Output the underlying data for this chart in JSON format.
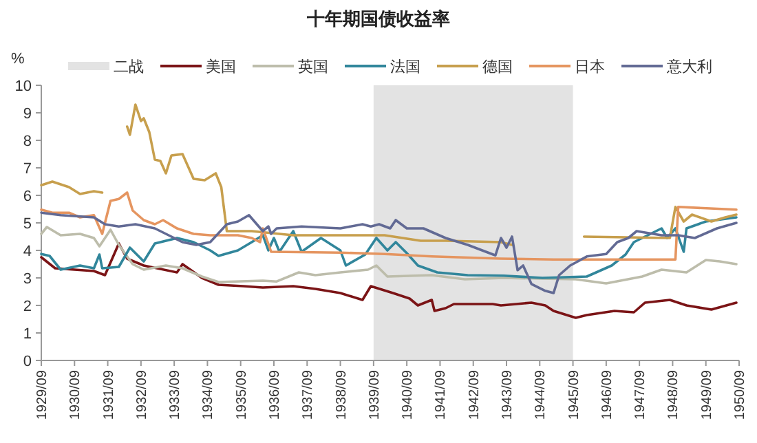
{
  "chart_data": {
    "type": "line",
    "title": "十年期国债收益率",
    "ylabel": "%",
    "xlim": [
      "1929-09",
      "1950-09"
    ],
    "ylim": [
      0,
      10
    ],
    "yticks": [
      0,
      1,
      2,
      3,
      4,
      5,
      6,
      7,
      8,
      9,
      10
    ],
    "xticks": [
      {
        "value": "1929-09",
        "label": "1929/09"
      },
      {
        "value": "1930-09",
        "label": "1930/09"
      },
      {
        "value": "1931-09",
        "label": "1931/09"
      },
      {
        "value": "1932-09",
        "label": "1932/09"
      },
      {
        "value": "1933-09",
        "label": "1933/09"
      },
      {
        "value": "1934-09",
        "label": "1934/09"
      },
      {
        "value": "1935-09",
        "label": "1935/09"
      },
      {
        "value": "1936-09",
        "label": "1936/09"
      },
      {
        "value": "1937-09",
        "label": "1937/09"
      },
      {
        "value": "1938-09",
        "label": "1938/09"
      },
      {
        "value": "1939-09",
        "label": "1939/09"
      },
      {
        "value": "1940-09",
        "label": "1940/09"
      },
      {
        "value": "1941-09",
        "label": "1941/09"
      },
      {
        "value": "1942-09",
        "label": "1942/09"
      },
      {
        "value": "1943-09",
        "label": "1943/09"
      },
      {
        "value": "1944-09",
        "label": "1944/09"
      },
      {
        "value": "1945-09",
        "label": "1945/09"
      },
      {
        "value": "1946-09",
        "label": "1946/09"
      },
      {
        "value": "1947-09",
        "label": "1947/09"
      },
      {
        "value": "1948-09",
        "label": "1948/09"
      },
      {
        "value": "1949-09",
        "label": "1949/09"
      },
      {
        "value": "1950-09",
        "label": "1950/09"
      }
    ],
    "bands": [
      {
        "axis": "x",
        "from": "1939-09",
        "to": "1945-09",
        "label": "二战",
        "color": "#e3e3e3"
      }
    ],
    "legend": "top",
    "grid": false,
    "marker": "none",
    "line_style": "solid",
    "series": [
      {
        "name": "美国",
        "color": "#7b1416",
        "x": [
          "1929-09",
          "1930-02",
          "1931-04",
          "1931-08",
          "1932-01",
          "1932-04",
          "1932-10",
          "1933-10",
          "1933-12",
          "1934-07",
          "1935-01",
          "1935-10",
          "1936-05",
          "1937-04",
          "1937-12",
          "1938-09",
          "1939-05",
          "1939-08",
          "1940-04",
          "1940-10",
          "1941-01",
          "1941-06",
          "1941-07",
          "1941-11",
          "1942-02",
          "1943-04",
          "1943-07",
          "1944-06",
          "1944-11",
          "1945-02",
          "1945-10",
          "1946-02",
          "1946-12",
          "1947-07",
          "1947-11",
          "1948-08",
          "1949-02",
          "1949-11",
          "1950-08"
        ],
        "values": [
          3.75,
          3.35,
          3.25,
          3.1,
          4.25,
          3.7,
          3.45,
          3.2,
          3.5,
          3.0,
          2.75,
          2.7,
          2.65,
          2.7,
          2.6,
          2.45,
          2.2,
          2.7,
          2.45,
          2.25,
          2.0,
          2.2,
          1.8,
          1.9,
          2.05,
          2.05,
          2.0,
          2.1,
          2.0,
          1.8,
          1.55,
          1.65,
          1.8,
          1.75,
          2.1,
          2.2,
          2.0,
          1.85,
          2.1
        ]
      },
      {
        "name": "英国",
        "color": "#bdbdab",
        "x": [
          "1929-09",
          "1929-11",
          "1930-04",
          "1930-11",
          "1931-04",
          "1931-06",
          "1931-10",
          "1932-01",
          "1932-06",
          "1932-10",
          "1933-06",
          "1933-12",
          "1934-07",
          "1935-01",
          "1936-05",
          "1936-10",
          "1937-06",
          "1937-12",
          "1938-09",
          "1939-07",
          "1939-10",
          "1940-02",
          "1941-06",
          "1942-06",
          "1943-08",
          "1945-10",
          "1946-09",
          "1947-10",
          "1948-05",
          "1949-02",
          "1949-09",
          "1950-02",
          "1950-08"
        ],
        "values": [
          4.6,
          4.85,
          4.55,
          4.6,
          4.45,
          4.15,
          4.75,
          4.2,
          3.5,
          3.3,
          3.45,
          3.35,
          3.05,
          2.85,
          2.9,
          2.87,
          3.2,
          3.1,
          3.2,
          3.3,
          3.45,
          3.05,
          3.1,
          2.95,
          3.0,
          2.95,
          2.8,
          3.05,
          3.3,
          3.2,
          3.65,
          3.6,
          3.5
        ]
      },
      {
        "name": "法国",
        "color": "#31869b",
        "x": [
          "1929-09",
          "1929-12",
          "1930-04",
          "1930-11",
          "1931-04",
          "1931-06",
          "1931-07",
          "1932-01",
          "1932-05",
          "1932-10",
          "1933-02",
          "1933-10",
          "1934-04",
          "1934-10",
          "1935-01",
          "1935-08",
          "1936-01",
          "1936-05",
          "1936-07",
          "1936-09",
          "1936-11",
          "1937-04",
          "1937-07",
          "1938-02",
          "1938-09",
          "1938-11",
          "1939-06",
          "1939-10",
          "1940-02",
          "1940-05",
          "1940-09",
          "1941-01",
          "1941-08",
          "1942-07",
          "1943-08",
          "1944-10",
          "1946-02",
          "1946-11",
          "1947-04",
          "1947-07",
          "1948-05",
          "1948-07",
          "1948-10",
          "1949-01",
          "1949-02",
          "1949-09",
          "1950-08"
        ],
        "values": [
          3.87,
          3.8,
          3.3,
          3.45,
          3.35,
          3.85,
          3.35,
          3.4,
          4.1,
          3.6,
          4.25,
          4.45,
          4.3,
          4.0,
          3.8,
          4.0,
          4.3,
          4.55,
          4.0,
          4.45,
          3.95,
          4.7,
          3.95,
          4.45,
          4.0,
          3.45,
          3.85,
          4.45,
          4.0,
          4.3,
          3.9,
          3.45,
          3.2,
          3.1,
          3.08,
          3.0,
          3.05,
          3.45,
          3.85,
          4.3,
          4.8,
          4.45,
          4.8,
          3.95,
          4.8,
          5.05,
          5.2
        ]
      },
      {
        "name": "德国",
        "color": "#c79f4d",
        "x": [
          "1929-09",
          "1930-01",
          "1930-07",
          "1930-11",
          "1931-04",
          "1931-07",
          "1931-12",
          "1932-04",
          "1932-05",
          "1932-07",
          "1932-09",
          "1932-10",
          "1932-12",
          "1933-02",
          "1933-04",
          "1933-06",
          "1933-08",
          "1933-12",
          "1934-04",
          "1934-08",
          "1934-12",
          "1935-02",
          "1935-04",
          "1936-01",
          "1937-04",
          "1940-01",
          "1941-02",
          "1941-11",
          "1943-07",
          "1943-11",
          "1944-06",
          "1946-01",
          "1948-08",
          "1948-10",
          "1949-01",
          "1949-04",
          "1949-11",
          "1950-04",
          "1950-08"
        ],
        "values": [
          6.37,
          6.5,
          6.3,
          6.05,
          6.15,
          6.1,
          null,
          8.5,
          8.2,
          9.3,
          8.7,
          8.8,
          8.3,
          7.3,
          7.25,
          6.8,
          7.45,
          7.5,
          6.6,
          6.55,
          6.8,
          6.3,
          4.7,
          4.7,
          4.55,
          4.55,
          4.35,
          4.35,
          4.3,
          4.2,
          null,
          4.5,
          4.45,
          5.58,
          5.05,
          5.3,
          5.05,
          5.2,
          5.3
        ]
      },
      {
        "name": "日本",
        "color": "#e59560",
        "x": [
          "1929-09",
          "1930-01",
          "1930-07",
          "1930-11",
          "1931-04",
          "1931-07",
          "1931-10",
          "1932-01",
          "1932-04",
          "1932-06",
          "1932-10",
          "1933-02",
          "1933-05",
          "1933-10",
          "1934-04",
          "1934-10",
          "1935-08",
          "1936-01",
          "1936-04",
          "1936-05",
          "1936-08",
          "1938-09",
          "1940-01",
          "1941-06",
          "1943-07",
          "1945-02",
          "1948-10",
          "1948-11",
          "1950-08"
        ],
        "values": [
          5.48,
          5.37,
          5.37,
          5.2,
          5.28,
          4.6,
          5.8,
          5.87,
          6.1,
          5.45,
          5.1,
          4.95,
          5.1,
          4.8,
          4.6,
          4.55,
          4.55,
          4.45,
          4.3,
          4.8,
          3.95,
          3.92,
          3.87,
          3.78,
          3.7,
          3.67,
          3.67,
          5.58,
          5.48
        ]
      },
      {
        "name": "意大利",
        "color": "#626a94",
        "x": [
          "1929-09",
          "1930-04",
          "1931-04",
          "1931-08",
          "1932-01",
          "1932-07",
          "1933-02",
          "1933-07",
          "1933-12",
          "1934-05",
          "1934-10",
          "1935-04",
          "1935-08",
          "1935-12",
          "1936-05",
          "1936-07",
          "1936-08",
          "1936-10",
          "1937-07",
          "1938-09",
          "1939-05",
          "1939-08",
          "1939-11",
          "1940-03",
          "1940-05",
          "1940-09",
          "1941-03",
          "1941-11",
          "1942-07",
          "1943-05",
          "1943-07",
          "1943-09",
          "1943-11",
          "1944-01",
          "1944-03",
          "1944-06",
          "1944-11",
          "1945-02",
          "1945-04",
          "1945-08",
          "1946-02",
          "1946-09",
          "1947-01",
          "1947-05",
          "1947-08",
          "1948-05",
          "1948-11",
          "1949-05",
          "1950-01",
          "1950-08"
        ],
        "values": [
          5.37,
          5.28,
          5.2,
          4.95,
          4.87,
          4.95,
          4.8,
          4.55,
          4.3,
          4.2,
          4.3,
          4.95,
          5.05,
          5.28,
          4.7,
          4.87,
          4.6,
          4.8,
          4.87,
          4.8,
          4.95,
          4.87,
          4.95,
          4.8,
          5.1,
          4.8,
          4.8,
          4.45,
          4.2,
          3.82,
          4.45,
          4.1,
          4.5,
          3.28,
          3.45,
          2.78,
          2.53,
          2.45,
          3.1,
          3.45,
          3.78,
          3.87,
          4.3,
          4.45,
          4.7,
          4.55,
          4.55,
          4.45,
          4.8,
          5.0
        ]
      }
    ]
  }
}
